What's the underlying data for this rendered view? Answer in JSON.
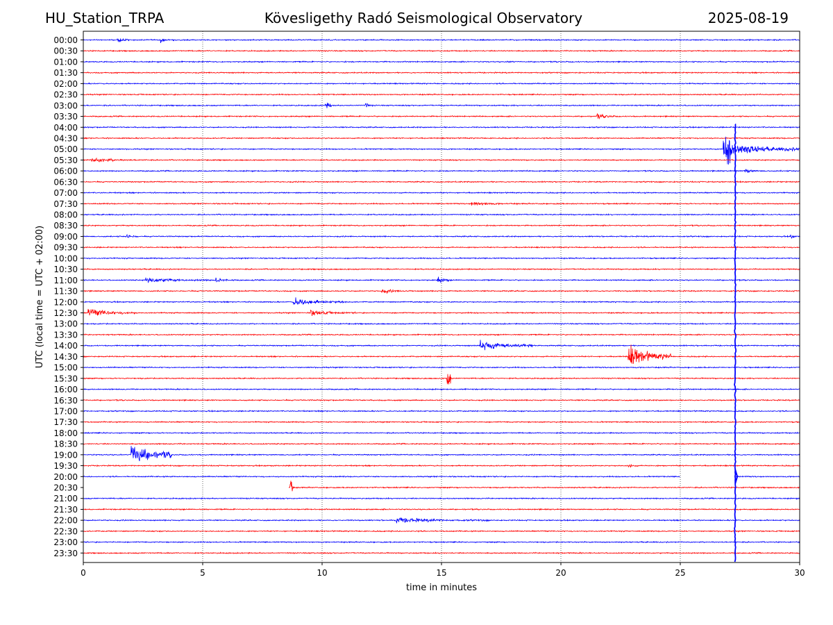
{
  "header": {
    "station": "HU_Station_TRPA",
    "observatory": "Kövesligethy Radó Seismological Observatory",
    "date": "2025-08-19"
  },
  "chart_data": {
    "type": "line",
    "title": "Kövesligethy Radó Seismological Observatory",
    "xlabel": "time in minutes",
    "ylabel": "UTC (local time = UTC + 02:00)",
    "xlim": [
      0,
      30
    ],
    "xticks": [
      0,
      5,
      10,
      15,
      20,
      25,
      30
    ],
    "grid": "vertical dotted at 5, 10, 15, 20, 25",
    "trace_colors": [
      "#0000ff",
      "#ff0000"
    ],
    "row_labels": [
      "00:00",
      "00:30",
      "01:00",
      "01:30",
      "02:00",
      "02:30",
      "03:00",
      "03:30",
      "04:00",
      "04:30",
      "05:00",
      "05:30",
      "06:00",
      "06:30",
      "07:00",
      "07:30",
      "08:00",
      "08:30",
      "09:00",
      "09:30",
      "10:00",
      "10:30",
      "11:00",
      "11:30",
      "12:00",
      "12:30",
      "13:00",
      "13:30",
      "14:00",
      "14:30",
      "15:00",
      "15:30",
      "16:00",
      "16:30",
      "17:00",
      "17:30",
      "18:00",
      "18:30",
      "19:00",
      "19:30",
      "20:00",
      "20:30",
      "21:00",
      "21:30",
      "22:00",
      "22:30",
      "23:00",
      "23:30"
    ],
    "events": [
      {
        "row": "00:00",
        "minute": 1.4,
        "amplitude": 0.4,
        "duration": 0.5
      },
      {
        "row": "00:00",
        "minute": 3.2,
        "amplitude": 0.4,
        "duration": 0.4
      },
      {
        "row": "01:00",
        "minute": 17.8,
        "amplitude": 0.25,
        "duration": 0.5
      },
      {
        "row": "03:00",
        "minute": 10.1,
        "amplitude": 0.3,
        "duration": 0.3
      },
      {
        "row": "03:00",
        "minute": 11.8,
        "amplitude": 0.3,
        "duration": 0.5
      },
      {
        "row": "03:30",
        "minute": 21.5,
        "amplitude": 0.3,
        "duration": 1.5
      },
      {
        "row": "05:00",
        "minute": 26.8,
        "amplitude": 2.5,
        "duration": 0.3
      },
      {
        "row": "05:00",
        "minute": 27.1,
        "amplitude": 0.9,
        "duration": 3.0
      },
      {
        "row": "05:30",
        "minute": 0.3,
        "amplitude": 0.35,
        "duration": 2.5
      },
      {
        "row": "06:00",
        "minute": 27.7,
        "amplitude": 0.4,
        "duration": 0.7
      },
      {
        "row": "07:30",
        "minute": 16.2,
        "amplitude": 0.35,
        "duration": 2.0
      },
      {
        "row": "09:00",
        "minute": 1.8,
        "amplitude": 0.45,
        "duration": 0.5
      },
      {
        "row": "09:00",
        "minute": 29.6,
        "amplitude": 0.35,
        "duration": 0.4
      },
      {
        "row": "11:00",
        "minute": 2.6,
        "amplitude": 0.4,
        "duration": 2.8
      },
      {
        "row": "11:00",
        "minute": 5.5,
        "amplitude": 0.45,
        "duration": 0.8
      },
      {
        "row": "11:00",
        "minute": 14.8,
        "amplitude": 0.6,
        "duration": 0.5
      },
      {
        "row": "11:30",
        "minute": 12.5,
        "amplitude": 0.3,
        "duration": 1.5
      },
      {
        "row": "12:00",
        "minute": 8.8,
        "amplitude": 0.6,
        "duration": 2.2
      },
      {
        "row": "12:30",
        "minute": 0.2,
        "amplitude": 0.6,
        "duration": 2.0
      },
      {
        "row": "12:30",
        "minute": 9.5,
        "amplitude": 0.4,
        "duration": 2.0
      },
      {
        "row": "14:00",
        "minute": 16.6,
        "amplitude": 0.8,
        "duration": 2.2
      },
      {
        "row": "14:30",
        "minute": 22.8,
        "amplitude": 1.5,
        "duration": 1.8
      },
      {
        "row": "15:30",
        "minute": 15.2,
        "amplitude": 1.0,
        "duration": 0.2
      },
      {
        "row": "19:00",
        "minute": 2.0,
        "amplitude": 1.5,
        "duration": 1.7
      },
      {
        "row": "19:30",
        "minute": 22.8,
        "amplitude": 0.3,
        "duration": 0.7
      },
      {
        "row": "20:30",
        "minute": 8.65,
        "amplitude": 1.1,
        "duration": 0.15
      },
      {
        "row": "22:00",
        "minute": 13.0,
        "amplitude": 0.4,
        "duration": 4.0
      }
    ],
    "data_gaps": [
      {
        "row": "20:00",
        "from_minute": 25.0,
        "to_minute": 27.3
      },
      {
        "row": "20:30",
        "from_minute": 0.0,
        "to_minute": 8.6
      }
    ],
    "spike": {
      "minute": 27.3,
      "from_row": "04:30",
      "to_row": "23:30"
    }
  }
}
